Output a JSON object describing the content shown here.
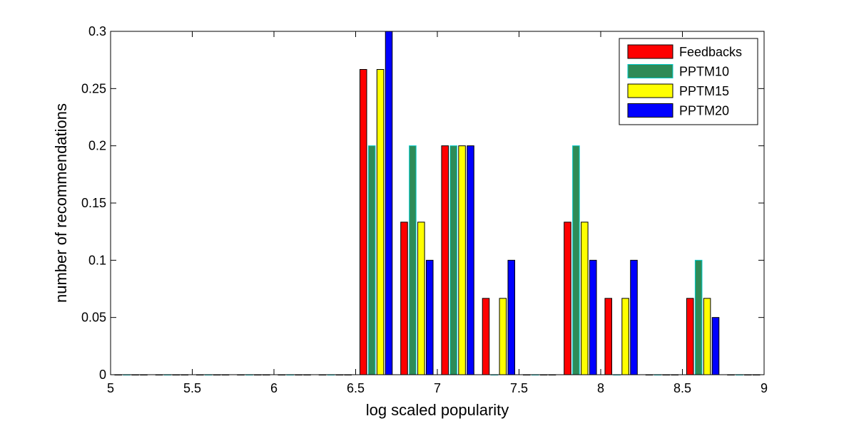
{
  "chart_data": {
    "type": "bar",
    "title": "",
    "xlabel": "log scaled popularity",
    "ylabel": "number of recommendations",
    "xlim": [
      5,
      9
    ],
    "ylim": [
      0,
      0.3
    ],
    "xticks": [
      "5",
      "5.5",
      "6",
      "6.5",
      "7",
      "7.5",
      "8",
      "8.5",
      "9"
    ],
    "xtick_values": [
      5,
      5.5,
      6,
      6.5,
      7,
      7.5,
      8,
      8.5,
      9
    ],
    "yticks": [
      "0",
      "0.05",
      "0.1",
      "0.15",
      "0.2",
      "0.25",
      "0.3"
    ],
    "ytick_values": [
      0,
      0.05,
      0.1,
      0.15,
      0.2,
      0.25,
      0.3
    ],
    "grid": false,
    "legend_position": "top-right",
    "x": [
      5.125,
      5.375,
      5.625,
      5.875,
      6.125,
      6.375,
      6.625,
      6.875,
      7.125,
      7.375,
      7.625,
      7.875,
      8.125,
      8.375,
      8.625,
      8.875
    ],
    "series": [
      {
        "name": "Feedbacks",
        "color": "#ff0000",
        "values": [
          0,
          0,
          0,
          0,
          0,
          0,
          0.2667,
          0.1333,
          0.2,
          0.0667,
          0,
          0.1333,
          0.0667,
          0,
          0.0667,
          0
        ]
      },
      {
        "name": "PPTM10",
        "color": "#2e8b57",
        "edge": "#00c8c8",
        "values": [
          0,
          0,
          0,
          0,
          0,
          0,
          0.2,
          0.2,
          0.2,
          0,
          0,
          0.2,
          0,
          0,
          0.1,
          0
        ]
      },
      {
        "name": "PPTM15",
        "color": "#ffff00",
        "values": [
          0,
          0,
          0,
          0,
          0,
          0,
          0.2667,
          0.1333,
          0.2,
          0.0667,
          0,
          0.1333,
          0.0667,
          0,
          0.0667,
          0
        ]
      },
      {
        "name": "PPTM20",
        "color": "#0000ff",
        "values": [
          0,
          0,
          0,
          0,
          0,
          0,
          0.3,
          0.1,
          0.2,
          0.1,
          0,
          0.1,
          0.1,
          0,
          0.05,
          0
        ]
      }
    ]
  }
}
